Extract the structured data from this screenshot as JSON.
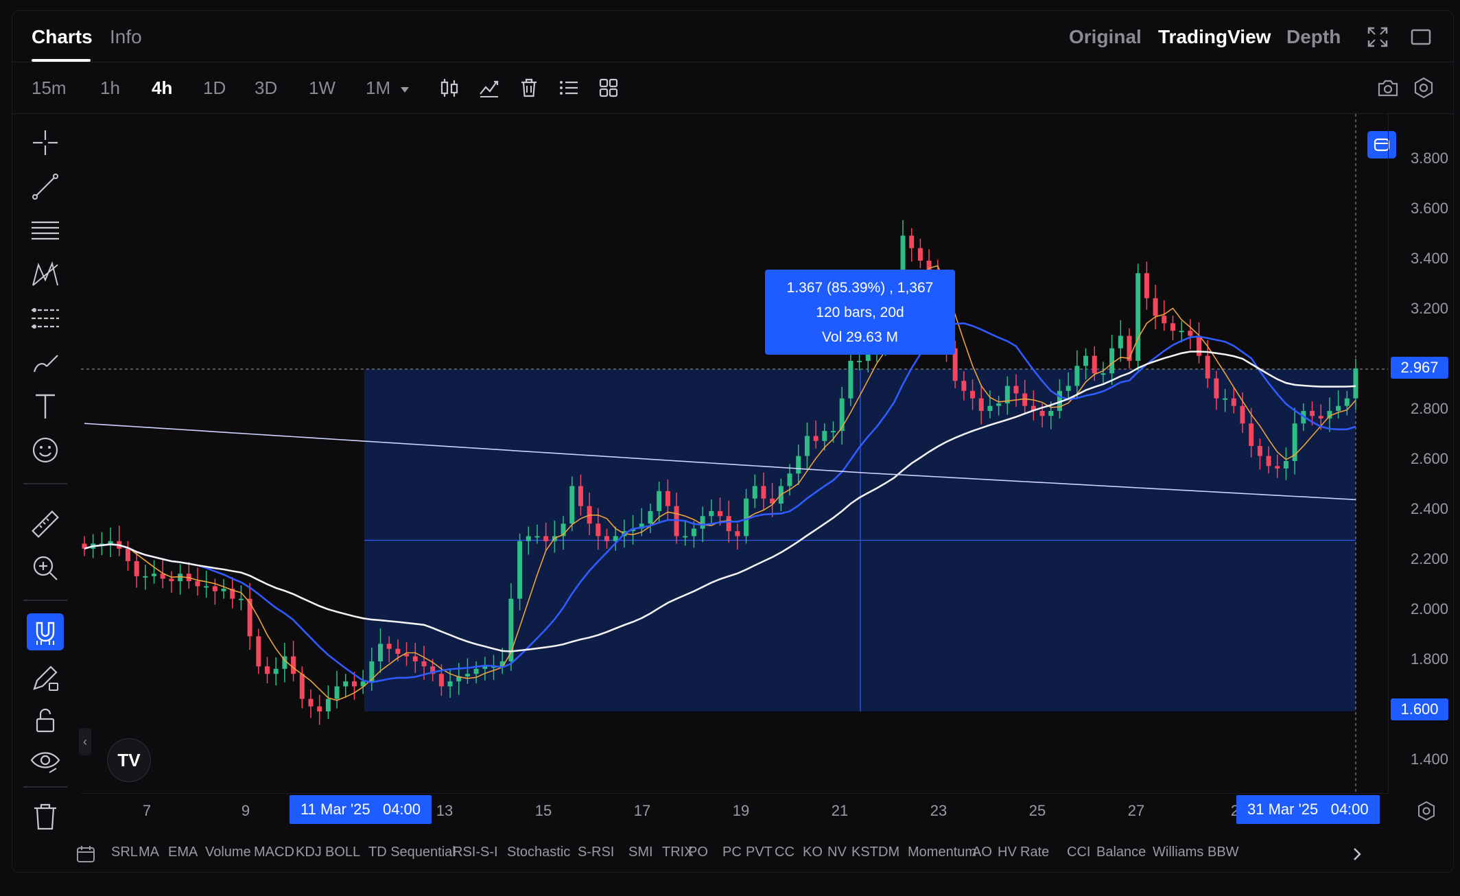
{
  "tabs": {
    "charts": "Charts",
    "info": "Info"
  },
  "views": {
    "original": "Original",
    "tradingview": "TradingView",
    "depth": "Depth"
  },
  "intervals": [
    "15m",
    "1h",
    "4h",
    "1D",
    "3D",
    "1W",
    "1M"
  ],
  "active_interval": "4h",
  "price_axis": {
    "labels": [
      "3.800",
      "3.600",
      "3.400",
      "3.200",
      "2.800",
      "2.600",
      "2.400",
      "2.200",
      "2.000",
      "1.800",
      "1.400"
    ],
    "current_price": "2.967",
    "range_low": "1.600"
  },
  "time_axis": {
    "labels": [
      "7",
      "9",
      "13",
      "15",
      "17",
      "19",
      "21",
      "23",
      "25",
      "27",
      "2"
    ],
    "range_start": "11 Mar '25   04:00",
    "range_end": "31 Mar '25   04:00"
  },
  "measure_tooltip": {
    "line1": "1.367 (85.39%) , 1,367",
    "line2": "120 bars, 20d",
    "line3": "Vol 29.63 M"
  },
  "indicators": [
    "SRL",
    "MA",
    "EMA",
    "Volume",
    "MACD",
    "KDJ",
    "BOLL",
    "TD Sequential",
    "RSI-S-I",
    "Stochastic",
    "S-RSI",
    "SMI",
    "TRIX",
    "PO",
    "PC",
    "PVT",
    "CC",
    "KO",
    "NV",
    "KST",
    "DM",
    "Momentum",
    "AO",
    "HV",
    "Rate",
    "CCI",
    "Balance",
    "Williams",
    "BBW"
  ],
  "colors": {
    "up": "#2ebd85",
    "down": "#f6465d",
    "accent": "#1f5cff",
    "ma_fast": "#f0a23a",
    "ma_mid": "#2f5bff",
    "ma_slow": "#f2f2f2",
    "ma_long": "#cfd3ff"
  },
  "chart_data": {
    "type": "candlestick",
    "ylim": [
      1.3,
      3.9
    ],
    "x_range": [
      "7",
      "31 Mar '25"
    ],
    "closes": [
      2.25,
      2.27,
      2.27,
      2.28,
      2.25,
      2.2,
      2.14,
      2.14,
      2.15,
      2.13,
      2.12,
      2.15,
      2.12,
      2.1,
      2.1,
      2.08,
      2.09,
      2.05,
      2.05,
      1.9,
      1.78,
      1.75,
      1.77,
      1.82,
      1.75,
      1.65,
      1.62,
      1.6,
      1.65,
      1.7,
      1.72,
      1.7,
      1.72,
      1.8,
      1.87,
      1.85,
      1.83,
      1.82,
      1.8,
      1.78,
      1.75,
      1.7,
      1.72,
      1.74,
      1.75,
      1.77,
      1.78,
      1.78,
      1.8,
      2.05,
      2.28,
      2.3,
      2.3,
      2.28,
      2.3,
      2.35,
      2.5,
      2.42,
      2.35,
      2.3,
      2.28,
      2.3,
      2.32,
      2.33,
      2.35,
      2.4,
      2.48,
      2.42,
      2.3,
      2.3,
      2.33,
      2.38,
      2.4,
      2.38,
      2.32,
      2.3,
      2.45,
      2.5,
      2.45,
      2.43,
      2.5,
      2.55,
      2.62,
      2.7,
      2.68,
      2.72,
      2.72,
      2.85,
      3.0,
      3.0,
      3.05,
      3.05,
      3.1,
      3.15,
      3.5,
      3.45,
      3.4,
      3.35,
      3.2,
      3.05,
      2.92,
      2.88,
      2.85,
      2.8,
      2.82,
      2.83,
      2.9,
      2.87,
      2.82,
      2.8,
      2.78,
      2.8,
      2.88,
      2.9,
      2.98,
      3.02,
      2.95,
      2.95,
      3.05,
      3.1,
      3.0,
      3.35,
      3.25,
      3.18,
      3.15,
      3.12,
      3.12,
      3.1,
      3.02,
      2.93,
      2.85,
      2.85,
      2.82,
      2.75,
      2.66,
      2.62,
      2.58,
      2.57,
      2.6,
      2.75,
      2.8,
      2.78,
      2.77,
      2.8,
      2.82,
      2.85,
      2.97
    ]
  }
}
